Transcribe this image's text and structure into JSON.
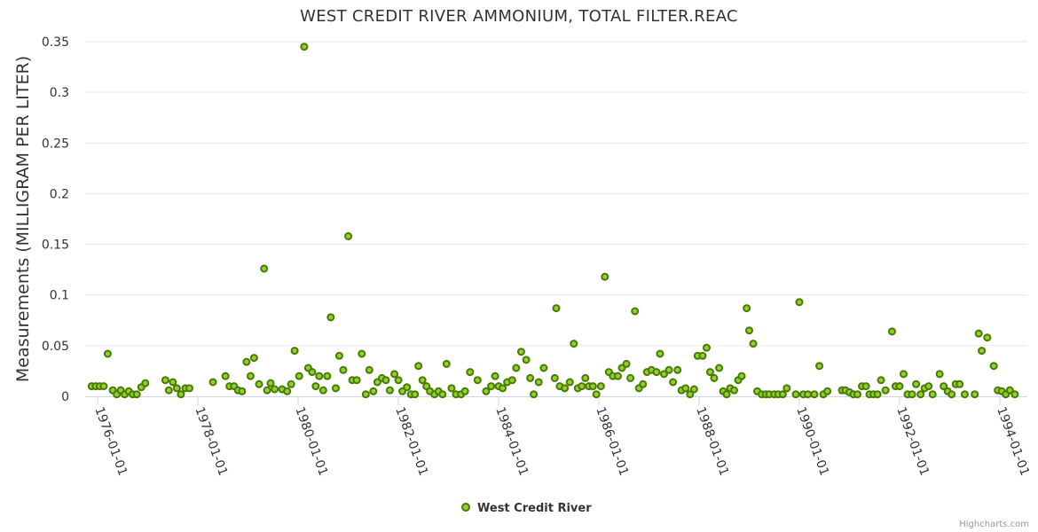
{
  "chart_data": {
    "type": "scatter",
    "title": "WEST CREDIT RIVER AMMONIUM, TOTAL FILTER.REAC",
    "xlabel": "",
    "ylabel": "Measurements (MILLIGRAM PER LITER)",
    "xlim": [
      1975.75,
      1994.55
    ],
    "ylim": [
      0,
      0.35
    ],
    "yticks": [
      0,
      0.05,
      0.1,
      0.15,
      0.2,
      0.25,
      0.3,
      0.35
    ],
    "ytick_labels": [
      "0",
      "0.05",
      "0.1",
      "0.15",
      "0.2",
      "0.25",
      "0.3",
      "0.35"
    ],
    "xticks": [
      1976,
      1978,
      1980,
      1982,
      1984,
      1986,
      1988,
      1990,
      1992,
      1994
    ],
    "xtick_labels": [
      "1976-01-01",
      "1978-01-01",
      "1980-01-01",
      "1982-01-01",
      "1984-01-01",
      "1986-01-01",
      "1988-01-01",
      "1990-01-01",
      "1992-01-01",
      "1994-01-01"
    ],
    "grid": true,
    "legend_position": "bottom-center",
    "series": [
      {
        "name": "West Credit River",
        "color": "#90d132",
        "stroke": "#4a7a00",
        "points": [
          [
            1975.88,
            0.01
          ],
          [
            1975.96,
            0.01
          ],
          [
            1976.04,
            0.01
          ],
          [
            1976.12,
            0.01
          ],
          [
            1976.2,
            0.042
          ],
          [
            1976.3,
            0.006
          ],
          [
            1976.38,
            0.002
          ],
          [
            1976.46,
            0.006
          ],
          [
            1976.54,
            0.002
          ],
          [
            1976.62,
            0.005
          ],
          [
            1976.7,
            0.002
          ],
          [
            1976.78,
            0.002
          ],
          [
            1976.87,
            0.009
          ],
          [
            1976.95,
            0.013
          ],
          [
            1977.35,
            0.016
          ],
          [
            1977.42,
            0.006
          ],
          [
            1977.5,
            0.014
          ],
          [
            1977.58,
            0.008
          ],
          [
            1977.66,
            0.002
          ],
          [
            1977.75,
            0.008
          ],
          [
            1977.83,
            0.008
          ],
          [
            1978.3,
            0.014
          ],
          [
            1978.55,
            0.02
          ],
          [
            1978.63,
            0.01
          ],
          [
            1978.72,
            0.01
          ],
          [
            1978.8,
            0.006
          ],
          [
            1978.88,
            0.005
          ],
          [
            1978.97,
            0.034
          ],
          [
            1979.05,
            0.02
          ],
          [
            1979.12,
            0.038
          ],
          [
            1979.22,
            0.012
          ],
          [
            1979.32,
            0.126
          ],
          [
            1979.38,
            0.006
          ],
          [
            1979.45,
            0.013
          ],
          [
            1979.53,
            0.007
          ],
          [
            1979.68,
            0.007
          ],
          [
            1979.78,
            0.005
          ],
          [
            1979.86,
            0.012
          ],
          [
            1979.93,
            0.045
          ],
          [
            1980.02,
            0.02
          ],
          [
            1980.12,
            0.345
          ],
          [
            1980.2,
            0.028
          ],
          [
            1980.28,
            0.024
          ],
          [
            1980.35,
            0.01
          ],
          [
            1980.42,
            0.02
          ],
          [
            1980.5,
            0.006
          ],
          [
            1980.58,
            0.02
          ],
          [
            1980.65,
            0.078
          ],
          [
            1980.75,
            0.008
          ],
          [
            1980.82,
            0.04
          ],
          [
            1980.9,
            0.026
          ],
          [
            1981.0,
            0.158
          ],
          [
            1981.08,
            0.016
          ],
          [
            1981.17,
            0.016
          ],
          [
            1981.27,
            0.042
          ],
          [
            1981.35,
            0.002
          ],
          [
            1981.42,
            0.026
          ],
          [
            1981.5,
            0.005
          ],
          [
            1981.58,
            0.014
          ],
          [
            1981.67,
            0.018
          ],
          [
            1981.75,
            0.016
          ],
          [
            1981.83,
            0.006
          ],
          [
            1981.92,
            0.022
          ],
          [
            1982.0,
            0.016
          ],
          [
            1982.08,
            0.005
          ],
          [
            1982.17,
            0.009
          ],
          [
            1982.25,
            0.002
          ],
          [
            1982.33,
            0.002
          ],
          [
            1982.4,
            0.03
          ],
          [
            1982.48,
            0.016
          ],
          [
            1982.56,
            0.01
          ],
          [
            1982.63,
            0.005
          ],
          [
            1982.72,
            0.002
          ],
          [
            1982.8,
            0.005
          ],
          [
            1982.88,
            0.002
          ],
          [
            1982.96,
            0.032
          ],
          [
            1983.06,
            0.008
          ],
          [
            1983.15,
            0.002
          ],
          [
            1983.25,
            0.002
          ],
          [
            1983.33,
            0.005
          ],
          [
            1983.43,
            0.024
          ],
          [
            1983.58,
            0.016
          ],
          [
            1983.75,
            0.005
          ],
          [
            1983.85,
            0.01
          ],
          [
            1983.93,
            0.02
          ],
          [
            1984.0,
            0.01
          ],
          [
            1984.08,
            0.008
          ],
          [
            1984.17,
            0.014
          ],
          [
            1984.27,
            0.016
          ],
          [
            1984.35,
            0.028
          ],
          [
            1984.45,
            0.044
          ],
          [
            1984.55,
            0.036
          ],
          [
            1984.63,
            0.018
          ],
          [
            1984.7,
            0.002
          ],
          [
            1984.8,
            0.014
          ],
          [
            1984.9,
            0.028
          ],
          [
            1985.12,
            0.018
          ],
          [
            1985.15,
            0.087
          ],
          [
            1985.22,
            0.01
          ],
          [
            1985.32,
            0.008
          ],
          [
            1985.42,
            0.014
          ],
          [
            1985.5,
            0.052
          ],
          [
            1985.58,
            0.008
          ],
          [
            1985.66,
            0.01
          ],
          [
            1985.73,
            0.018
          ],
          [
            1985.8,
            0.01
          ],
          [
            1985.88,
            0.01
          ],
          [
            1985.95,
            0.002
          ],
          [
            1986.04,
            0.01
          ],
          [
            1986.12,
            0.118
          ],
          [
            1986.2,
            0.024
          ],
          [
            1986.28,
            0.02
          ],
          [
            1986.38,
            0.02
          ],
          [
            1986.46,
            0.028
          ],
          [
            1986.55,
            0.032
          ],
          [
            1986.63,
            0.018
          ],
          [
            1986.72,
            0.084
          ],
          [
            1986.8,
            0.008
          ],
          [
            1986.88,
            0.012
          ],
          [
            1986.96,
            0.024
          ],
          [
            1987.05,
            0.026
          ],
          [
            1987.15,
            0.024
          ],
          [
            1987.22,
            0.042
          ],
          [
            1987.3,
            0.022
          ],
          [
            1987.4,
            0.026
          ],
          [
            1987.48,
            0.014
          ],
          [
            1987.57,
            0.026
          ],
          [
            1987.65,
            0.006
          ],
          [
            1987.73,
            0.008
          ],
          [
            1987.82,
            0.002
          ],
          [
            1987.9,
            0.007
          ],
          [
            1987.97,
            0.04
          ],
          [
            1988.07,
            0.04
          ],
          [
            1988.15,
            0.048
          ],
          [
            1988.22,
            0.024
          ],
          [
            1988.3,
            0.018
          ],
          [
            1988.4,
            0.028
          ],
          [
            1988.48,
            0.005
          ],
          [
            1988.55,
            0.002
          ],
          [
            1988.62,
            0.008
          ],
          [
            1988.7,
            0.006
          ],
          [
            1988.78,
            0.016
          ],
          [
            1988.85,
            0.02
          ],
          [
            1988.95,
            0.087
          ],
          [
            1989.0,
            0.065
          ],
          [
            1989.08,
            0.052
          ],
          [
            1989.16,
            0.005
          ],
          [
            1989.25,
            0.002
          ],
          [
            1989.33,
            0.002
          ],
          [
            1989.4,
            0.002
          ],
          [
            1989.5,
            0.002
          ],
          [
            1989.58,
            0.002
          ],
          [
            1989.67,
            0.002
          ],
          [
            1989.75,
            0.008
          ],
          [
            1989.93,
            0.002
          ],
          [
            1990.0,
            0.093
          ],
          [
            1990.08,
            0.002
          ],
          [
            1990.17,
            0.002
          ],
          [
            1990.3,
            0.002
          ],
          [
            1990.4,
            0.03
          ],
          [
            1990.48,
            0.002
          ],
          [
            1990.56,
            0.005
          ],
          [
            1990.85,
            0.006
          ],
          [
            1990.92,
            0.006
          ],
          [
            1991.0,
            0.004
          ],
          [
            1991.08,
            0.002
          ],
          [
            1991.16,
            0.002
          ],
          [
            1991.25,
            0.01
          ],
          [
            1991.33,
            0.01
          ],
          [
            1991.4,
            0.002
          ],
          [
            1991.48,
            0.002
          ],
          [
            1991.56,
            0.002
          ],
          [
            1991.63,
            0.016
          ],
          [
            1991.72,
            0.006
          ],
          [
            1991.85,
            0.064
          ],
          [
            1991.92,
            0.01
          ],
          [
            1992.0,
            0.01
          ],
          [
            1992.08,
            0.022
          ],
          [
            1992.16,
            0.002
          ],
          [
            1992.25,
            0.002
          ],
          [
            1992.33,
            0.012
          ],
          [
            1992.42,
            0.002
          ],
          [
            1992.5,
            0.008
          ],
          [
            1992.58,
            0.01
          ],
          [
            1992.66,
            0.002
          ],
          [
            1992.8,
            0.022
          ],
          [
            1992.88,
            0.01
          ],
          [
            1992.96,
            0.005
          ],
          [
            1993.04,
            0.002
          ],
          [
            1993.12,
            0.012
          ],
          [
            1993.2,
            0.012
          ],
          [
            1993.3,
            0.002
          ],
          [
            1993.5,
            0.002
          ],
          [
            1993.58,
            0.062
          ],
          [
            1993.64,
            0.045
          ],
          [
            1993.75,
            0.058
          ],
          [
            1993.88,
            0.03
          ],
          [
            1993.96,
            0.006
          ],
          [
            1994.04,
            0.005
          ],
          [
            1994.12,
            0.002
          ],
          [
            1994.2,
            0.006
          ],
          [
            1994.3,
            0.002
          ]
        ]
      }
    ]
  },
  "credits": "Highcharts.com"
}
